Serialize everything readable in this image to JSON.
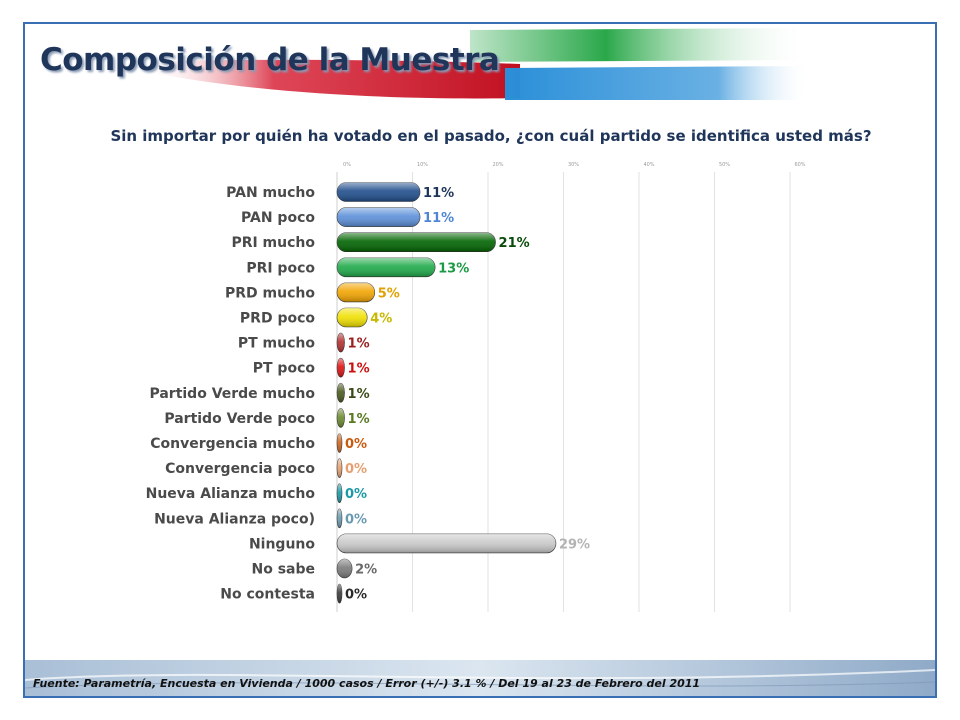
{
  "slide": {
    "title": "Composición de la Muestra",
    "question": "Sin importar por quién ha votado en el pasado, ¿con cuál partido se identifica usted más?",
    "source": "Fuente: Parametría, Encuesta en Vivienda / 1000 casos / Error (+/-) 3.1 % / Del 19 al 23 de Febrero del 2011",
    "colors": {
      "title": "#1f3559",
      "frame": "#3a6fb4",
      "banner_red": "#d8263a",
      "banner_green": "#2aa84a",
      "banner_blue": "#2a8fd8"
    }
  },
  "chart_data": {
    "type": "bar",
    "orientation": "horizontal",
    "title": "Sin importar por quién ha votado en el pasado, ¿con cuál partido se identifica usted más?",
    "xlabel": "",
    "ylabel": "",
    "xlim": [
      0,
      60
    ],
    "ticks": [
      "0%",
      "10%",
      "20%",
      "30%",
      "40%",
      "50%",
      "60%"
    ],
    "grid": true,
    "legend": "none",
    "categories": [
      "PAN mucho",
      "PAN poco",
      "PRI mucho",
      "PRI poco",
      "PRD mucho",
      "PRD poco",
      "PT mucho",
      "PT poco",
      "Partido Verde mucho",
      "Partido Verde poco",
      "Convergencia mucho",
      "Convergencia poco",
      "Nueva Alianza mucho",
      "Nueva Alianza poco)",
      "Ninguno",
      "No sabe",
      "No contesta"
    ],
    "values": [
      11,
      11,
      21,
      13,
      5,
      4,
      1,
      1,
      1,
      1,
      0,
      0,
      0,
      0,
      29,
      2,
      0
    ],
    "value_labels": [
      "11%",
      "11%",
      "21%",
      "13%",
      "5%",
      "4%",
      "1%",
      "1%",
      "1%",
      "1%",
      "0%",
      "0%",
      "0%",
      "0%",
      "29%",
      "2%",
      "0%"
    ],
    "bar_colors": [
      "#1f4e8c",
      "#5b8fd9",
      "#006400",
      "#1faa4a",
      "#f2a400",
      "#f0e000",
      "#b23030",
      "#dd1111",
      "#4a5a1e",
      "#6b8a2e",
      "#d0651e",
      "#e6a070",
      "#1a9aa6",
      "#6a9ab0",
      "#c8c8c8",
      "#7a7a7a",
      "#3a3a3a"
    ],
    "label_colors": [
      "#1f3559",
      "#4f86d4",
      "#0a4a0a",
      "#1a9a42",
      "#e0a000",
      "#c8b800",
      "#9a2020",
      "#cc1010",
      "#3a4a18",
      "#5a7a22",
      "#c85a10",
      "#e6a070",
      "#1a9aa6",
      "#6a9ab0",
      "#b4b4b4",
      "#6a6a6a",
      "#2a2a2a"
    ]
  }
}
